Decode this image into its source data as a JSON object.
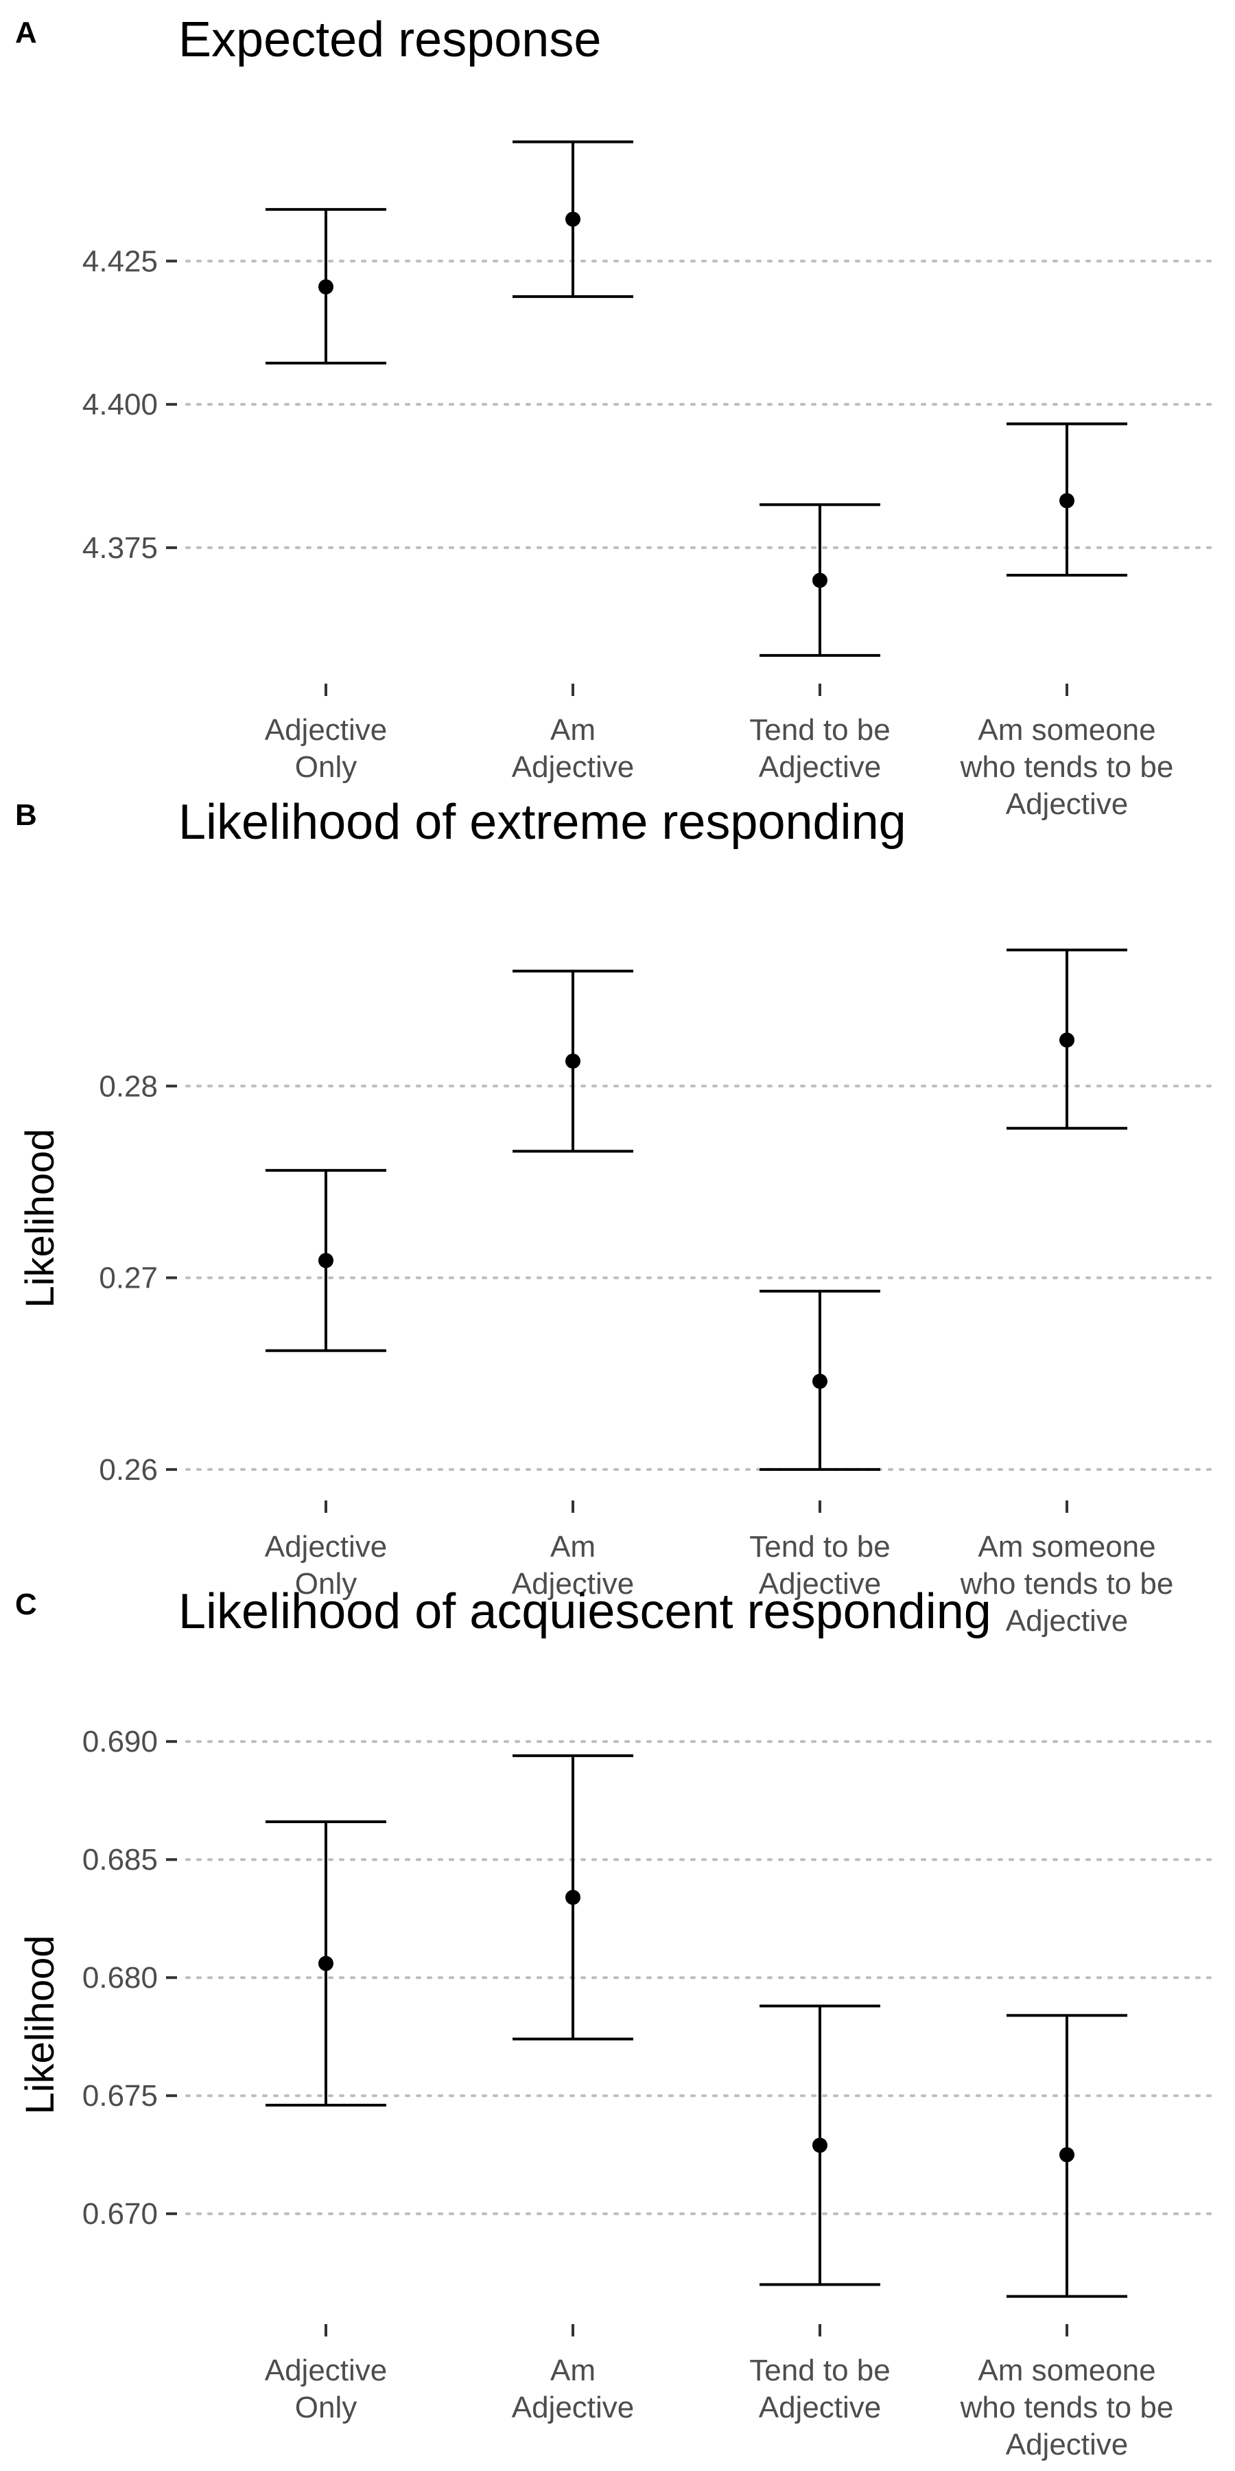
{
  "chart_data": [
    {
      "type": "errorbar",
      "panel_tag": "A",
      "title": "Expected response",
      "ylabel": "",
      "ylim": [
        4.352,
        4.443
      ],
      "yticks": [
        4.375,
        4.4,
        4.425
      ],
      "ytick_labels": [
        "4.375",
        "4.400",
        "4.425"
      ],
      "grid": "horizontal-dotted",
      "categories": [
        [
          "Adjective",
          "Only"
        ],
        [
          "Am",
          "Adjective"
        ],
        [
          "Tend to be",
          "Adjective"
        ],
        [
          "Am someone",
          "who tends to be",
          "Adjective"
        ]
      ],
      "values": [
        4.4205,
        4.4323,
        4.3693,
        4.3832
      ],
      "lower": [
        4.4072,
        4.4188,
        4.3562,
        4.3702
      ],
      "upper": [
        4.434,
        4.4458,
        4.3825,
        4.3966
      ]
    },
    {
      "type": "errorbar",
      "panel_tag": "B",
      "title": "Likelihood of extreme responding",
      "ylabel": "Likelihood",
      "ylim": [
        0.2586,
        0.2876
      ],
      "yticks": [
        0.26,
        0.27,
        0.28
      ],
      "ytick_labels": [
        "0.26",
        "0.27",
        "0.28"
      ],
      "grid": "horizontal-dotted",
      "categories": [
        [
          "Adjective",
          "Only"
        ],
        [
          "Am",
          "Adjective"
        ],
        [
          "Tend to be",
          "Adjective"
        ],
        [
          "Am someone",
          "who tends to be",
          "Adjective"
        ]
      ],
      "values": [
        0.2709,
        0.2813,
        0.2646,
        0.2824
      ],
      "lower": [
        0.2662,
        0.2766,
        0.26,
        0.2778
      ],
      "upper": [
        0.2756,
        0.286,
        0.2693,
        0.2871
      ]
    },
    {
      "type": "errorbar",
      "panel_tag": "C",
      "title": "Likelihood of acquiescent responding",
      "ylabel": "Likelihood",
      "ylim": [
        0.6655,
        0.6905
      ],
      "yticks": [
        0.67,
        0.675,
        0.68,
        0.685,
        0.69
      ],
      "ytick_labels": [
        "0.670",
        "0.675",
        "0.680",
        "0.685",
        "0.690"
      ],
      "grid": "horizontal-dotted",
      "categories": [
        [
          "Adjective",
          "Only"
        ],
        [
          "Am",
          "Adjective"
        ],
        [
          "Tend to be",
          "Adjective"
        ],
        [
          "Am someone",
          "who tends to be",
          "Adjective"
        ]
      ],
      "values": [
        0.6806,
        0.6834,
        0.6729,
        0.6725
      ],
      "lower": [
        0.6746,
        0.6774,
        0.667,
        0.6665
      ],
      "upper": [
        0.6866,
        0.6894,
        0.6788,
        0.6784
      ]
    }
  ]
}
